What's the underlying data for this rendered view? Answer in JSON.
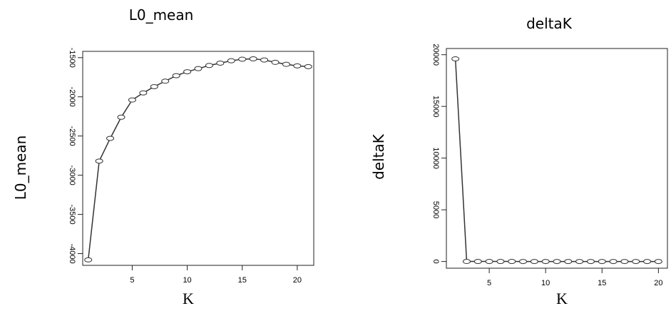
{
  "chart_data": [
    {
      "type": "line",
      "title": "L0_mean",
      "xlabel": "K",
      "ylabel": "L0_mean",
      "xlim": [
        0.5,
        21.5
      ],
      "ylim": [
        -4150,
        -1420
      ],
      "x_ticks": [
        5,
        10,
        15,
        20
      ],
      "y_ticks": [
        -4000,
        -3500,
        -3000,
        -2500,
        -2000,
        -1500
      ],
      "y_tick_labels": [
        "-4000",
        "-3500",
        "-3000",
        "-2500",
        "-2000",
        "-1500"
      ],
      "grid": false,
      "x": [
        1,
        2,
        3,
        4,
        5,
        6,
        7,
        8,
        9,
        10,
        11,
        12,
        13,
        14,
        15,
        16,
        17,
        18,
        19,
        20,
        21
      ],
      "values": [
        -4080,
        -2820,
        -2530,
        -2260,
        -2040,
        -1950,
        -1870,
        -1800,
        -1730,
        -1680,
        -1640,
        -1600,
        -1570,
        -1540,
        -1520,
        -1515,
        -1530,
        -1560,
        -1585,
        -1605,
        -1615
      ]
    },
    {
      "type": "line",
      "title": "deltaK",
      "xlabel": "K",
      "ylabel": "deltaK",
      "xlim": [
        1.2,
        20.8
      ],
      "ylim": [
        -650,
        20600
      ],
      "x_ticks": [
        5,
        10,
        15,
        20
      ],
      "y_ticks": [
        0,
        5000,
        10000,
        15000,
        20000
      ],
      "y_tick_labels": [
        "0",
        "5000",
        "10000",
        "15000",
        "20000"
      ],
      "grid": false,
      "x": [
        2,
        3,
        4,
        5,
        6,
        7,
        8,
        9,
        10,
        11,
        12,
        13,
        14,
        15,
        16,
        17,
        18,
        19,
        20
      ],
      "values": [
        19600,
        5,
        3,
        2,
        2,
        2,
        1,
        1,
        1,
        1,
        1,
        1,
        1,
        1,
        1,
        1,
        1,
        1,
        1
      ]
    }
  ]
}
